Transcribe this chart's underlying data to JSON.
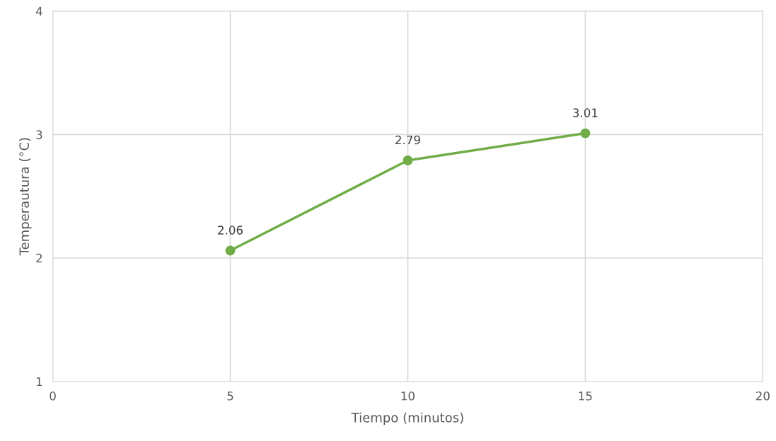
{
  "chart_data": {
    "type": "line",
    "xlabel": "Tiempo (minutos)",
    "ylabel": "Temperautura (°C)",
    "x": [
      5,
      10,
      15
    ],
    "series": [
      {
        "color": "#70ad47",
        "values": [
          2.06,
          2.79,
          3.01
        ]
      }
    ],
    "xlim": [
      0,
      20
    ],
    "xticks": [
      0,
      5,
      10,
      15,
      20
    ],
    "ylim": [
      1,
      4
    ],
    "yticks": [
      1,
      2,
      3,
      4
    ],
    "grid": true,
    "marker": "circle",
    "line_style": "solid",
    "data_labels": true
  }
}
